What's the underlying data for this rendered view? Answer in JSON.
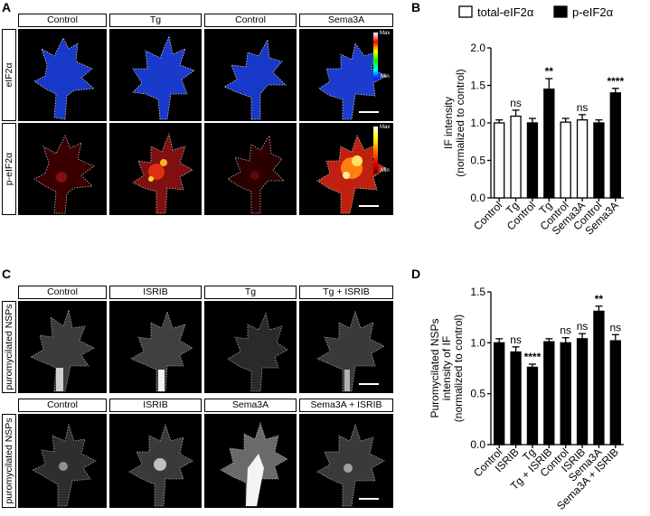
{
  "panels": {
    "A": {
      "letter": "A",
      "conditions": [
        "Control",
        "Tg",
        "Control",
        "Sema3A"
      ],
      "rows": [
        "eIF2α",
        "p-eIF2α"
      ],
      "colorbar": {
        "max": "Max",
        "min": "Min"
      },
      "colormaps": {
        "eIF2a": [
          "#ffffff",
          "#ff0000",
          "#ffff00",
          "#00ff00",
          "#00ffff",
          "#0000ff"
        ],
        "p_eIF2a": [
          "#ffffff",
          "#ffff00",
          "#ff8800",
          "#ff0000",
          "#550000"
        ]
      }
    },
    "B": {
      "letter": "B"
    },
    "C": {
      "letter": "C",
      "row1_conditions": [
        "Control",
        "ISRIB",
        "Tg",
        "Tg + ISRIB"
      ],
      "row2_conditions": [
        "Control",
        "ISRIB",
        "Sema3A",
        "Sema3A + ISRIB"
      ],
      "row_label": "puromycilated NSPs"
    },
    "D": {
      "letter": "D"
    }
  },
  "chart_data": [
    {
      "type": "bar",
      "panel": "B",
      "categories": [
        "Control",
        "Tg",
        "Control",
        "Tg",
        "Control",
        "Sema3A",
        "Control",
        "Sema3A"
      ],
      "values": [
        1.0,
        1.09,
        1.0,
        1.45,
        1.01,
        1.04,
        1.0,
        1.4
      ],
      "errors": [
        0.04,
        0.08,
        0.06,
        0.14,
        0.05,
        0.07,
        0.04,
        0.06
      ],
      "fill": [
        "white",
        "white",
        "black",
        "black",
        "white",
        "white",
        "black",
        "black"
      ],
      "significance": [
        "",
        "ns",
        "",
        "**",
        "",
        "ns",
        "",
        "****"
      ],
      "legend": [
        {
          "name": "total-eIF2α",
          "fill": "white"
        },
        {
          "name": "p-eIF2α",
          "fill": "black"
        }
      ],
      "legend_position": "top",
      "ylabel_lines": [
        "IF intensity",
        "(normalized to control)"
      ],
      "ylim": [
        0,
        2.0
      ],
      "yticks": [
        "0.0",
        "0.5",
        "1.0",
        "1.5",
        "2.0"
      ],
      "grid": false
    },
    {
      "type": "bar",
      "panel": "D",
      "categories": [
        "Control",
        "ISRIB",
        "Tg",
        "Tg + ISRIB",
        "Control",
        "ISRIB",
        "Sema3A",
        "Sema3A + ISRIB"
      ],
      "values": [
        1.0,
        0.91,
        0.76,
        1.01,
        1.0,
        1.04,
        1.31,
        1.02
      ],
      "errors": [
        0.04,
        0.05,
        0.03,
        0.03,
        0.05,
        0.05,
        0.05,
        0.06
      ],
      "fill": [
        "black",
        "black",
        "black",
        "black",
        "black",
        "black",
        "black",
        "black"
      ],
      "significance": [
        "",
        "ns",
        "****",
        "",
        "ns",
        "ns",
        "**",
        "ns"
      ],
      "ylabel_lines": [
        "Puromycilated NSPs",
        "intensity of IF",
        "(normalized to control)"
      ],
      "ylim": [
        0,
        1.5
      ],
      "yticks": [
        "0.0",
        "0.5",
        "1.0",
        "1.5"
      ],
      "grid": false
    }
  ]
}
